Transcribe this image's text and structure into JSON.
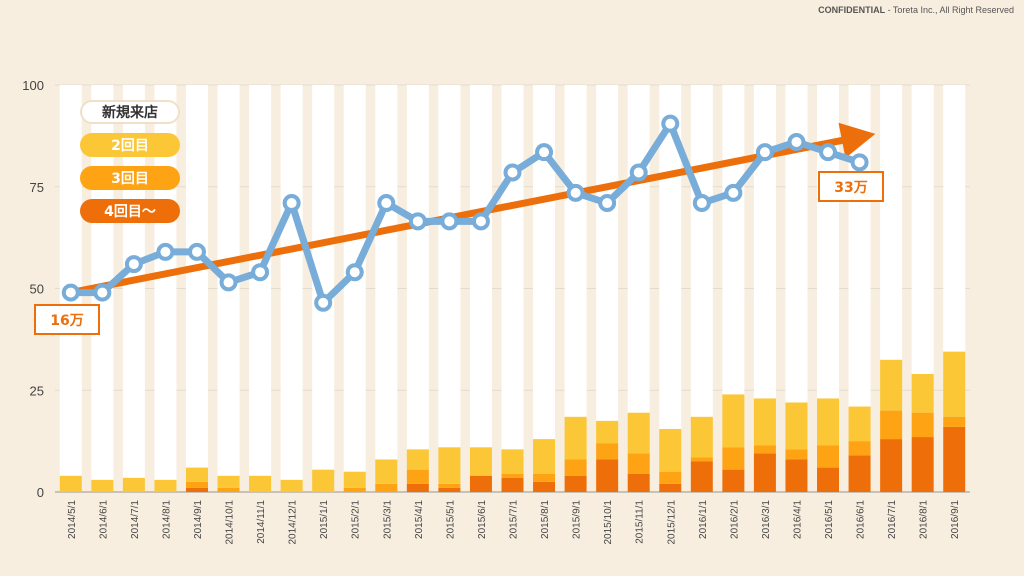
{
  "header": {
    "confidential": "CONFIDENTIAL",
    "copyright": " - Toreta Inc., All Right Reserved"
  },
  "legend": {
    "new": "新規来店",
    "second": "2回目",
    "third": "3回目",
    "fourth": "4回目〜"
  },
  "callouts": {
    "start": "16万",
    "end": "33万"
  },
  "colors": {
    "new": "#ffffff",
    "second": "#fbc737",
    "third": "#fea313",
    "fourth": "#ee6f0a",
    "line": "#78acd9",
    "arrow": "#ec6f0c",
    "grid": "#e2dccf"
  },
  "chart_data": {
    "type": "bar",
    "stacked": true,
    "title": "",
    "xlabel": "",
    "ylabel": "",
    "ylim": [
      0,
      100
    ],
    "yticks": [
      0,
      25,
      50,
      75,
      100
    ],
    "categories": [
      "2014/5/1",
      "2014/6/1",
      "2014/7/1",
      "2014/8/1",
      "2014/9/1",
      "2014/10/1",
      "2014/11/1",
      "2014/12/1",
      "2015/1/1",
      "2015/2/1",
      "2015/3/1",
      "2015/4/1",
      "2015/5/1",
      "2015/6/1",
      "2015/7/1",
      "2015/8/1",
      "2015/9/1",
      "2015/10/1",
      "2015/11/1",
      "2015/12/1",
      "2016/1/1",
      "2016/2/1",
      "2016/3/1",
      "2016/4/1",
      "2016/5/1",
      "2016/6/1",
      "2016/7/1",
      "2016/8/1",
      "2016/9/1"
    ],
    "series": [
      {
        "name": "4回目〜",
        "values": [
          0,
          0,
          0,
          0,
          1,
          0,
          0,
          0,
          0,
          0,
          0,
          2,
          1,
          4,
          3.5,
          2.5,
          4,
          8,
          4.5,
          2,
          7.5,
          5.5,
          9.5,
          8,
          6,
          9,
          13,
          13.5,
          16
        ]
      },
      {
        "name": "3回目",
        "values": [
          0,
          0,
          0,
          0,
          1.5,
          1,
          0,
          0,
          0,
          1,
          2,
          3.5,
          1,
          0,
          1,
          2,
          4,
          4,
          5,
          3,
          1,
          5.5,
          2,
          2.5,
          5.5,
          3.5,
          7,
          6,
          2.5
        ]
      },
      {
        "name": "2回目",
        "values": [
          4,
          3,
          3.5,
          3,
          3.5,
          3,
          4,
          3,
          5.5,
          4,
          6,
          5,
          9,
          7,
          6,
          8.5,
          10.5,
          5.5,
          10,
          10.5,
          10,
          13,
          11.5,
          11.5,
          11.5,
          8.5,
          12.5,
          9.5,
          16
        ]
      },
      {
        "name": "新規来店",
        "values": [
          96,
          97,
          96.5,
          97,
          94,
          96,
          96,
          97,
          94.5,
          95,
          92,
          89.5,
          89,
          89,
          89.5,
          87,
          81.5,
          82.5,
          80.5,
          84.5,
          81.5,
          76,
          77,
          78,
          77,
          79,
          67.5,
          71,
          65.5
        ]
      }
    ],
    "line": {
      "name": "来店数",
      "values": [
        49,
        49,
        56,
        59,
        59,
        51.5,
        54,
        71,
        46.5,
        54,
        71,
        66.5,
        66.5,
        66.5,
        78.5,
        83.5,
        73.5,
        71,
        78.5,
        90.5,
        71,
        73.5,
        83.5,
        86,
        83.5,
        81,
        null,
        null,
        null
      ]
    },
    "trend": {
      "from": [
        0,
        49
      ],
      "to": [
        25.5,
        88
      ]
    }
  }
}
